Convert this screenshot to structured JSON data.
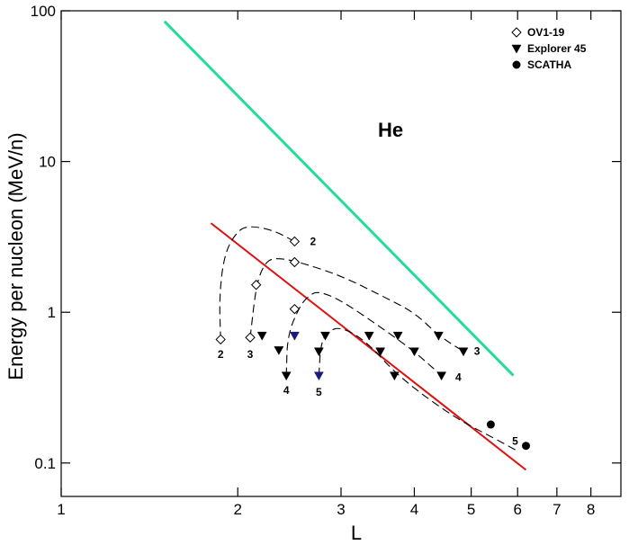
{
  "chart_data": {
    "type": "scatter",
    "title": "",
    "species_label": "He",
    "xlabel": "L",
    "ylabel": "Energy per nucleon (MeV/n)",
    "x_scale": "log",
    "y_scale": "log",
    "xlim": [
      1,
      9
    ],
    "ylim": [
      0.06,
      100
    ],
    "x_ticks": [
      {
        "value": 1,
        "label": "1"
      },
      {
        "value": 2,
        "label": "2"
      },
      {
        "value": 3,
        "label": "3"
      },
      {
        "value": 4,
        "label": "4"
      },
      {
        "value": 5,
        "label": "5"
      },
      {
        "value": 6,
        "label": "6"
      },
      {
        "value": 7,
        "label": "7"
      },
      {
        "value": 8,
        "label": "8"
      }
    ],
    "y_ticks": [
      {
        "value": 0.1,
        "label": "0.1"
      },
      {
        "value": 1,
        "label": "1"
      },
      {
        "value": 10,
        "label": "10"
      },
      {
        "value": 100,
        "label": "100"
      }
    ],
    "grid": false,
    "legend_position": "top-right",
    "legend": [
      {
        "name": "OV1-19",
        "marker": "diamond-open"
      },
      {
        "name": "Explorer 45",
        "marker": "triangle-down-filled"
      },
      {
        "name": "SCATHA",
        "marker": "circle-filled"
      }
    ],
    "colors": {
      "green_line": "#22dd99",
      "red_line": "#e01010",
      "markers": "#000000",
      "blue_marker": "#1a1a80"
    },
    "lines": [
      {
        "color_key": "green_line",
        "points": [
          [
            1.5,
            85
          ],
          [
            5.9,
            0.38
          ]
        ]
      },
      {
        "color_key": "red_line",
        "points": [
          [
            1.8,
            3.9
          ],
          [
            6.2,
            0.09
          ]
        ]
      }
    ],
    "series": [
      {
        "name": "OV1-19",
        "marker": "diamond-open",
        "points": [
          [
            1.87,
            0.66
          ],
          [
            2.1,
            0.68
          ],
          [
            2.15,
            1.52
          ],
          [
            2.5,
            1.05
          ],
          [
            2.5,
            2.15
          ],
          [
            2.5,
            2.95
          ]
        ]
      },
      {
        "name": "Explorer 45",
        "marker": "triangle-down-filled",
        "points": [
          [
            2.2,
            0.7
          ],
          [
            2.35,
            0.56
          ],
          [
            2.42,
            0.38
          ],
          [
            2.5,
            0.7
          ],
          [
            2.75,
            0.55
          ],
          [
            2.75,
            0.38
          ],
          [
            2.82,
            0.7
          ],
          [
            3.35,
            0.7
          ],
          [
            3.5,
            0.55
          ],
          [
            3.7,
            0.38
          ],
          [
            3.75,
            0.7
          ],
          [
            4.0,
            0.55
          ],
          [
            4.4,
            0.7
          ],
          [
            4.45,
            0.38
          ],
          [
            4.85,
            0.55
          ]
        ]
      },
      {
        "name": "SCATHA",
        "marker": "circle-filled",
        "points": [
          [
            5.4,
            0.18
          ],
          [
            6.2,
            0.13
          ]
        ]
      }
    ],
    "curves": [
      {
        "label": "2",
        "label_at": [
          2.6,
          2.95
        ],
        "style": "dashed",
        "points": [
          [
            1.87,
            0.66
          ],
          [
            1.86,
            1.3
          ],
          [
            1.9,
            2.5
          ],
          [
            2.0,
            3.5
          ],
          [
            2.1,
            3.75
          ],
          [
            2.3,
            3.5
          ],
          [
            2.5,
            2.95
          ]
        ]
      },
      {
        "label": "3",
        "label_at": [
          4.95,
          0.55
        ],
        "style": "dashed",
        "points": [
          [
            2.1,
            0.68
          ],
          [
            2.15,
            1.52
          ],
          [
            2.22,
            2.1
          ],
          [
            2.3,
            2.3
          ],
          [
            2.5,
            2.2
          ],
          [
            3.0,
            1.75
          ],
          [
            3.5,
            1.3
          ],
          [
            4.0,
            1.0
          ],
          [
            4.4,
            0.7
          ],
          [
            4.85,
            0.55
          ]
        ]
      },
      {
        "label": "4",
        "label_at": [
          4.6,
          0.37
        ],
        "style": "dashed",
        "points": [
          [
            2.42,
            0.38
          ],
          [
            2.43,
            0.7
          ],
          [
            2.55,
            1.1
          ],
          [
            2.65,
            1.3
          ],
          [
            2.75,
            1.38
          ],
          [
            3.0,
            1.2
          ],
          [
            3.5,
            0.8
          ],
          [
            4.0,
            0.55
          ],
          [
            4.45,
            0.38
          ]
        ]
      },
      {
        "label": "5",
        "label_at": [
          5.75,
          0.14
        ],
        "style": "dashed",
        "points": [
          [
            2.75,
            0.38
          ],
          [
            2.77,
            0.62
          ],
          [
            2.85,
            0.75
          ],
          [
            3.0,
            0.8
          ],
          [
            3.3,
            0.65
          ],
          [
            3.7,
            0.4
          ],
          [
            4.2,
            0.27
          ],
          [
            4.8,
            0.19
          ],
          [
            5.4,
            0.15
          ],
          [
            6.0,
            0.12
          ]
        ]
      }
    ],
    "bottom_labels": [
      {
        "label": "2",
        "at": [
          1.87,
          0.57
        ]
      },
      {
        "label": "3",
        "at": [
          2.1,
          0.57
        ]
      },
      {
        "label": "4",
        "at": [
          2.42,
          0.33
        ]
      },
      {
        "label": "5",
        "at": [
          2.75,
          0.32
        ]
      }
    ]
  }
}
